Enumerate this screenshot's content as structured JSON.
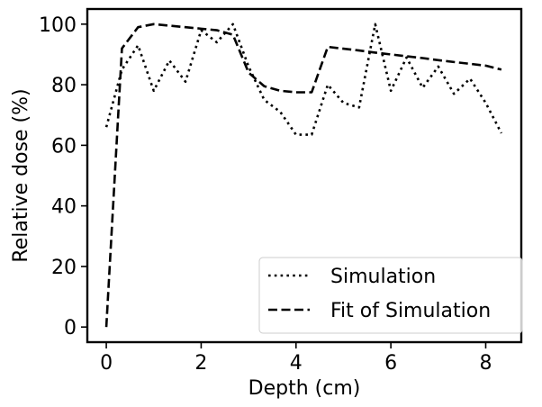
{
  "chart_data": {
    "type": "line",
    "title": "",
    "xlabel": "Depth (cm)",
    "ylabel": "Relative dose (%)",
    "xlim": [
      -0.4,
      8.75
    ],
    "ylim": [
      -5,
      105
    ],
    "xticks": [
      0,
      2,
      4,
      6,
      8
    ],
    "yticks": [
      0,
      20,
      40,
      60,
      80,
      100
    ],
    "grid": false,
    "legend_position": "lower-right",
    "series": [
      {
        "name": "Simulation",
        "line_style": "dotted",
        "color": "#000000",
        "x": [
          0.0,
          0.33,
          0.67,
          1.0,
          1.33,
          1.67,
          2.0,
          2.33,
          2.67,
          3.0,
          3.33,
          3.67,
          4.0,
          4.33,
          4.67,
          5.0,
          5.33,
          5.67,
          6.0,
          6.33,
          6.67,
          7.0,
          7.33,
          7.67,
          8.0,
          8.33
        ],
        "y": [
          66,
          85,
          93,
          78,
          88,
          81,
          98,
          94,
          100,
          86,
          75,
          71,
          63.5,
          63.5,
          80,
          74,
          72.5,
          100,
          78,
          89,
          79,
          86,
          77,
          82,
          74,
          64
        ]
      },
      {
        "name": "Fit of Simulation",
        "line_style": "dashed",
        "color": "#000000",
        "x": [
          0.0,
          0.33,
          0.67,
          1.0,
          1.33,
          1.67,
          2.0,
          2.33,
          2.67,
          3.0,
          3.33,
          3.67,
          4.0,
          4.33,
          4.67,
          5.0,
          5.33,
          5.67,
          6.0,
          6.33,
          6.67,
          7.0,
          7.33,
          7.67,
          8.0,
          8.33
        ],
        "y": [
          0,
          92,
          99,
          100,
          99.5,
          99,
          98.5,
          98,
          96.5,
          84,
          79.5,
          78,
          77.5,
          77.5,
          92.5,
          91.9,
          91.3,
          90.6,
          90,
          89.4,
          88.8,
          88.1,
          87.5,
          86.9,
          86.3,
          85
        ]
      }
    ]
  }
}
